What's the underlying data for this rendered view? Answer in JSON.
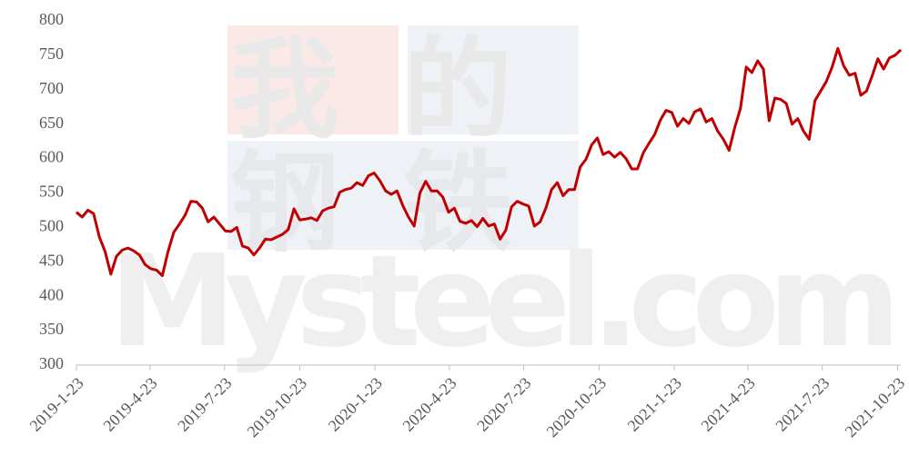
{
  "chart_data": {
    "type": "line",
    "watermark": [
      "我的",
      "钢铁",
      "Mysteel.com"
    ],
    "x": [
      "2019-1-23",
      "2019-1-30",
      "2019-2-6",
      "2019-2-13",
      "2019-2-20",
      "2019-2-27",
      "2019-3-6",
      "2019-3-13",
      "2019-3-20",
      "2019-3-27",
      "2019-4-3",
      "2019-4-10",
      "2019-4-17",
      "2019-4-24",
      "2019-5-1",
      "2019-5-8",
      "2019-5-15",
      "2019-5-22",
      "2019-5-29",
      "2019-6-5",
      "2019-6-12",
      "2019-6-19",
      "2019-6-26",
      "2019-7-3",
      "2019-7-10",
      "2019-7-17",
      "2019-7-24",
      "2019-7-31",
      "2019-8-7",
      "2019-8-14",
      "2019-8-21",
      "2019-8-28",
      "2019-9-4",
      "2019-9-11",
      "2019-9-18",
      "2019-9-25",
      "2019-10-2",
      "2019-10-9",
      "2019-10-16",
      "2019-10-23",
      "2019-10-30",
      "2019-11-6",
      "2019-11-13",
      "2019-11-20",
      "2019-11-27",
      "2019-12-4",
      "2019-12-11",
      "2019-12-18",
      "2019-12-25",
      "2020-1-1",
      "2020-1-8",
      "2020-1-15",
      "2020-1-22",
      "2020-1-29",
      "2020-2-5",
      "2020-2-12",
      "2020-2-19",
      "2020-2-26",
      "2020-3-4",
      "2020-3-11",
      "2020-3-18",
      "2020-3-25",
      "2020-4-1",
      "2020-4-8",
      "2020-4-15",
      "2020-4-22",
      "2020-4-29",
      "2020-5-6",
      "2020-5-13",
      "2020-5-20",
      "2020-5-27",
      "2020-6-3",
      "2020-6-10",
      "2020-6-17",
      "2020-6-24",
      "2020-7-1",
      "2020-7-8",
      "2020-7-15",
      "2020-7-22",
      "2020-7-29",
      "2020-8-5",
      "2020-8-12",
      "2020-8-19",
      "2020-8-26",
      "2020-9-2",
      "2020-9-9",
      "2020-9-16",
      "2020-9-23",
      "2020-9-30",
      "2020-10-7",
      "2020-10-14",
      "2020-10-21",
      "2020-10-28",
      "2020-11-4",
      "2020-11-11",
      "2020-11-18",
      "2020-11-25",
      "2020-12-2",
      "2020-12-9",
      "2020-12-16",
      "2020-12-23",
      "2020-12-30",
      "2021-1-6",
      "2021-1-13",
      "2021-1-20",
      "2021-1-27",
      "2021-2-3",
      "2021-2-10",
      "2021-2-17",
      "2021-2-24",
      "2021-3-3",
      "2021-3-10",
      "2021-3-17",
      "2021-3-24",
      "2021-3-31",
      "2021-4-7",
      "2021-4-14",
      "2021-4-21",
      "2021-4-28",
      "2021-5-5",
      "2021-5-12",
      "2021-5-19",
      "2021-5-26",
      "2021-6-2",
      "2021-6-9",
      "2021-6-16",
      "2021-6-23",
      "2021-6-30",
      "2021-7-7",
      "2021-7-14",
      "2021-7-21",
      "2021-7-28",
      "2021-8-4",
      "2021-8-11",
      "2021-8-18",
      "2021-8-25",
      "2021-9-1",
      "2021-9-8",
      "2021-9-15",
      "2021-9-22",
      "2021-9-29",
      "2021-10-6",
      "2021-10-13",
      "2021-10-20",
      "2021-10-27"
    ],
    "series": [
      {
        "color": "#c00000",
        "values": [
          522,
          515,
          525,
          520,
          486,
          465,
          432,
          458,
          467,
          470,
          466,
          460,
          446,
          440,
          438,
          430,
          465,
          493,
          505,
          518,
          538,
          537,
          528,
          508,
          515,
          505,
          495,
          494,
          500,
          473,
          470,
          460,
          470,
          483,
          482,
          486,
          490,
          497,
          527,
          511,
          512,
          514,
          510,
          524,
          528,
          530,
          551,
          555,
          557,
          565,
          561,
          575,
          579,
          568,
          553,
          548,
          553,
          532,
          515,
          502,
          550,
          567,
          553,
          553,
          544,
          522,
          528,
          509,
          506,
          510,
          501,
          513,
          502,
          505,
          483,
          496,
          530,
          538,
          534,
          531,
          502,
          508,
          528,
          555,
          565,
          546,
          555,
          555,
          588,
          599,
          620,
          630,
          606,
          610,
          602,
          609,
          600,
          585,
          585,
          608,
          622,
          635,
          656,
          670,
          667,
          647,
          658,
          651,
          668,
          672,
          653,
          658,
          640,
          628,
          612,
          645,
          673,
          733,
          725,
          742,
          730,
          655,
          688,
          686,
          680,
          650,
          658,
          640,
          628,
          684,
          698,
          712,
          733,
          760,
          735,
          721,
          724,
          692,
          698,
          720,
          745,
          730,
          746,
          750,
          758
        ]
      }
    ],
    "xlim": [
      "2019-1-23",
      "2021-10-27"
    ],
    "xticks": [
      "2019-1-23",
      "2019-4-23",
      "2019-7-23",
      "2019-10-23",
      "2020-1-23",
      "2020-4-23",
      "2020-7-23",
      "2020-10-23",
      "2021-1-23",
      "2021-4-23",
      "2021-7-23",
      "2021-10-23"
    ],
    "ylim": [
      300,
      800
    ],
    "yticks": [
      300,
      350,
      400,
      450,
      500,
      550,
      600,
      650,
      700,
      750,
      800
    ],
    "grid": false
  }
}
